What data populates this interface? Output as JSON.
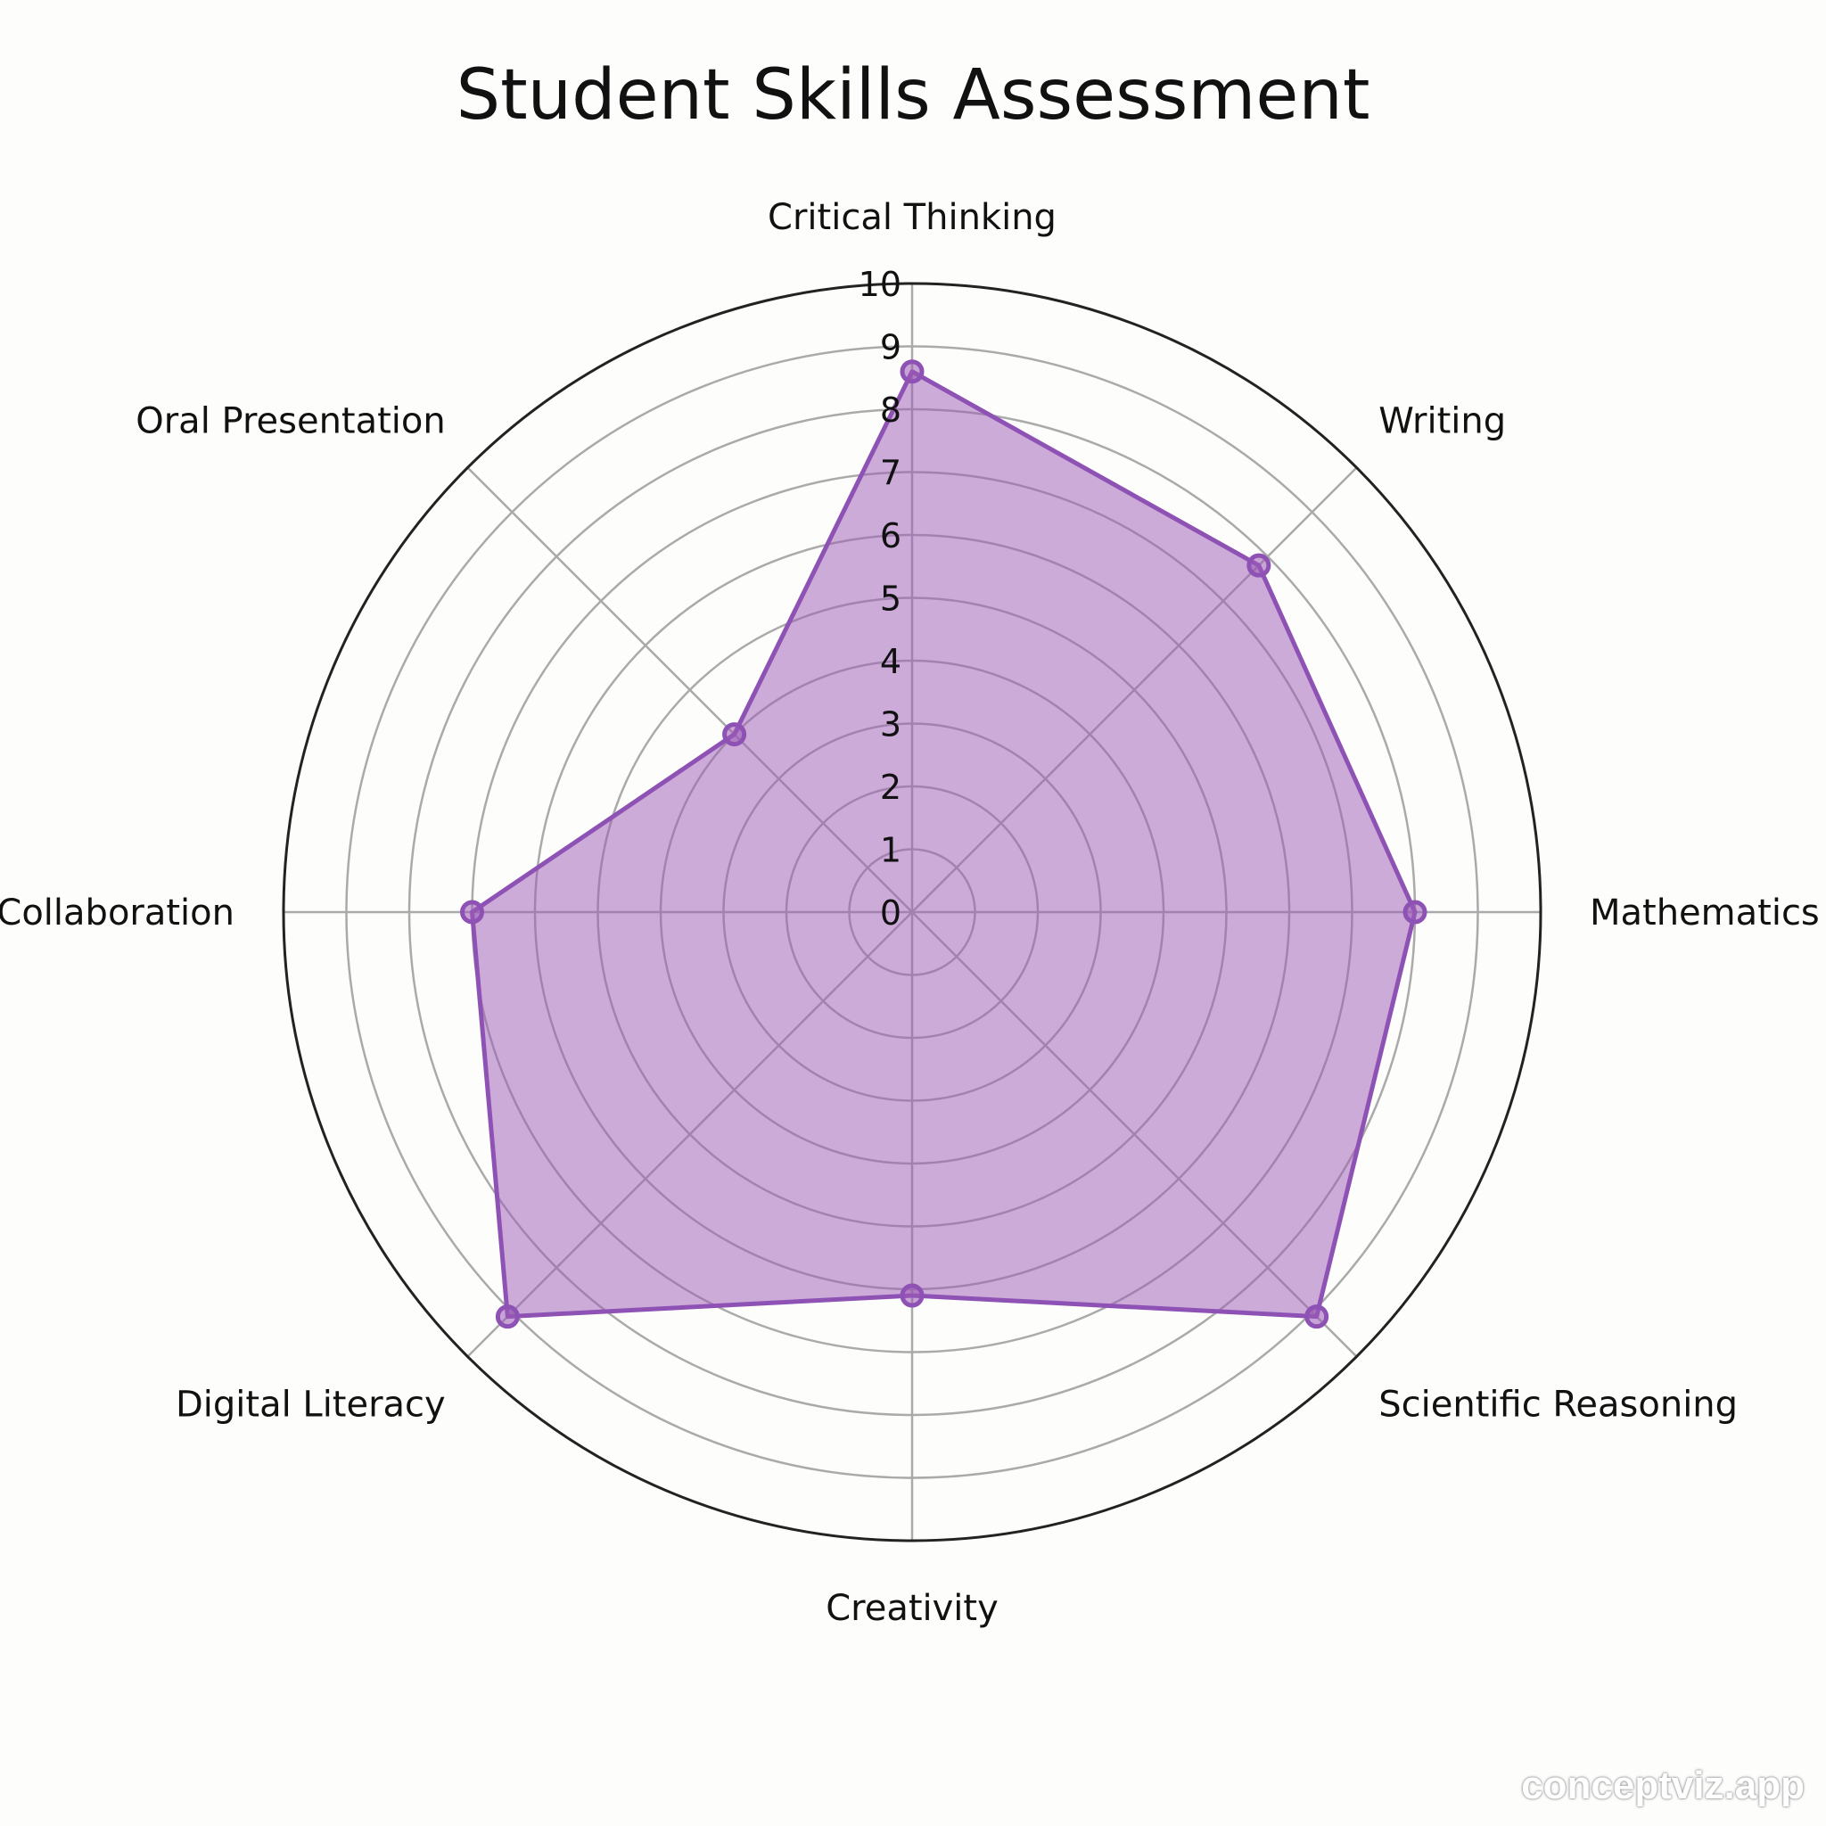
{
  "chart_data": {
    "type": "radar",
    "title": "Student Skills Assessment",
    "categories": [
      "Critical Thinking",
      "Writing",
      "Mathematics",
      "Scientific Reasoning",
      "Creativity",
      "Digital Literacy",
      "Collaboration",
      "Oral Presentation"
    ],
    "values": [
      8.6,
      7.8,
      8.0,
      9.1,
      6.1,
      9.1,
      7.0,
      4.0
    ],
    "rlim": [
      0,
      10
    ],
    "rticks": [
      "0",
      "1",
      "2",
      "3",
      "4",
      "5",
      "6",
      "7",
      "8",
      "9",
      "10"
    ],
    "grid": true,
    "colors": {
      "fill": "#9b59b6",
      "line": "#8e52b5"
    }
  },
  "watermark": "conceptviz.app"
}
